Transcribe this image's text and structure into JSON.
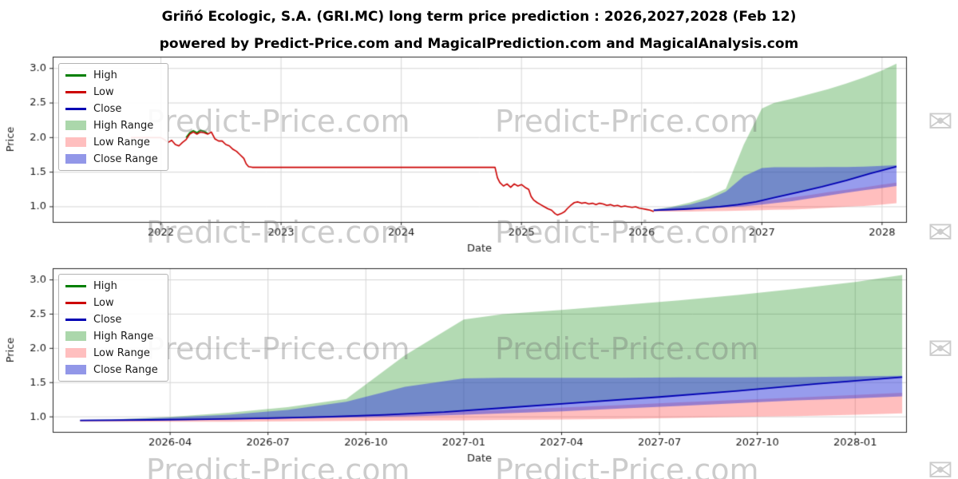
{
  "page": {
    "title": "Griñó Ecologic, S.A. (GRI.MC) long term price prediction : 2026,2027,2028 (Feb 12)",
    "subtitle": "powered by Predict-Price.com and MagicalPrediction.com and MagicalAnalysis.com",
    "watermark_text": "Predict-Price.com",
    "watermark_icon": "✉"
  },
  "colors": {
    "high_line": "#007f00",
    "low_line": "#cc0000",
    "close_line": "#0000b3",
    "high_range_fill": "rgba(20,140,20,0.32)",
    "low_range_fill": "rgba(255,40,40,0.30)",
    "close_range_fill": "rgba(55,65,220,0.52)",
    "grid": "#d6d6d6",
    "frame": "#262626",
    "tick_text": "#1a1a1a"
  },
  "legend": [
    {
      "label": "High",
      "type": "line",
      "swatch": "#007f00"
    },
    {
      "label": "Low",
      "type": "line",
      "swatch": "#cc0000"
    },
    {
      "label": "Close",
      "type": "line",
      "swatch": "#0000b3"
    },
    {
      "label": "High Range",
      "type": "patch",
      "swatch": "#abd7ab"
    },
    {
      "label": "Low Range",
      "type": "patch",
      "swatch": "#ffbfbf"
    },
    {
      "label": "Close Range",
      "type": "patch",
      "swatch": "#9297e8"
    }
  ],
  "chart_data": [
    {
      "type": "line",
      "name": "history-and-forecast",
      "xlabel": "Date",
      "ylabel": "Price",
      "xlim": [
        2021.1,
        2028.2
      ],
      "ylim": [
        0.78,
        3.17
      ],
      "grid": true,
      "legend_position": "upper left",
      "xticks": [
        {
          "v": 2022,
          "label": "2022"
        },
        {
          "v": 2023,
          "label": "2023"
        },
        {
          "v": 2024,
          "label": "2024"
        },
        {
          "v": 2025,
          "label": "2025"
        },
        {
          "v": 2026,
          "label": "2026"
        },
        {
          "v": 2027,
          "label": "2027"
        },
        {
          "v": 2028,
          "label": "2028"
        }
      ],
      "yticks": [
        {
          "v": 1.0,
          "label": "1.0"
        },
        {
          "v": 1.5,
          "label": "1.5"
        },
        {
          "v": 2.0,
          "label": "2.0"
        },
        {
          "v": 2.5,
          "label": "2.5"
        },
        {
          "v": 3.0,
          "label": "3.0"
        }
      ],
      "bands": [
        {
          "name": "high-range",
          "color": "rgba(20,140,20,0.32)",
          "x": [
            2026.1,
            2026.25,
            2026.4,
            2026.55,
            2026.7,
            2026.85,
            2027.0,
            2027.1,
            2027.25,
            2027.4,
            2027.55,
            2027.7,
            2027.85,
            2028.0,
            2028.12
          ],
          "upper": [
            0.96,
            1.0,
            1.06,
            1.14,
            1.26,
            1.9,
            2.42,
            2.5,
            2.56,
            2.63,
            2.7,
            2.78,
            2.87,
            2.97,
            3.07
          ],
          "lower": [
            0.95,
            0.96,
            0.97,
            0.98,
            1.0,
            1.04,
            1.09,
            1.13,
            1.19,
            1.25,
            1.32,
            1.38,
            1.46,
            1.53,
            1.58
          ]
        },
        {
          "name": "low-range",
          "color": "rgba(255,40,40,0.30)",
          "x": [
            2026.1,
            2026.25,
            2026.4,
            2026.55,
            2026.7,
            2026.85,
            2027.0,
            2027.1,
            2027.25,
            2027.4,
            2027.55,
            2027.7,
            2027.85,
            2028.0,
            2028.12
          ],
          "upper": [
            0.955,
            0.97,
            0.985,
            1.0,
            1.02,
            1.05,
            1.08,
            1.1,
            1.135,
            1.17,
            1.21,
            1.245,
            1.28,
            1.32,
            1.35
          ],
          "lower": [
            0.93,
            0.93,
            0.93,
            0.935,
            0.94,
            0.945,
            0.95,
            0.955,
            0.96,
            0.97,
            0.985,
            1.0,
            1.01,
            1.03,
            1.05
          ]
        },
        {
          "name": "close-range",
          "color": "rgba(55,65,220,0.52)",
          "x": [
            2026.1,
            2026.25,
            2026.4,
            2026.55,
            2026.7,
            2026.85,
            2027.0,
            2027.1,
            2027.25,
            2027.4,
            2027.55,
            2027.7,
            2027.85,
            2028.0,
            2028.12
          ],
          "upper": [
            0.96,
            0.99,
            1.03,
            1.1,
            1.22,
            1.44,
            1.56,
            1.57,
            1.57,
            1.57,
            1.575,
            1.575,
            1.58,
            1.59,
            1.6
          ],
          "lower": [
            0.94,
            0.95,
            0.96,
            0.975,
            0.99,
            1.005,
            1.03,
            1.05,
            1.08,
            1.12,
            1.16,
            1.2,
            1.24,
            1.27,
            1.3
          ]
        }
      ],
      "series": [
        {
          "name": "High",
          "color": "#007f00",
          "width": 1.6,
          "x": [
            2022.21,
            2022.24,
            2022.27,
            2022.3,
            2022.33,
            2022.36,
            2022.39
          ],
          "y": [
            2.0,
            2.07,
            2.1,
            2.07,
            2.105,
            2.09,
            2.06
          ]
        },
        {
          "name": "Low",
          "color": "#cc0000",
          "width": 1.6,
          "x": [
            2021.75,
            2022.0,
            2022.03,
            2022.06,
            2022.09,
            2022.12,
            2022.15,
            2022.18,
            2022.21,
            2022.24,
            2022.27,
            2022.3,
            2022.33,
            2022.36,
            2022.39,
            2022.42,
            2022.45,
            2022.48,
            2022.51,
            2022.54,
            2022.57,
            2022.6,
            2022.63,
            2022.66,
            2022.69,
            2022.71,
            2022.73,
            2022.76,
            2024.78,
            2024.8,
            2024.82,
            2024.85,
            2024.88,
            2024.91,
            2024.94,
            2024.97,
            2025.0,
            2025.03,
            2025.06,
            2025.08,
            2025.1,
            2025.13,
            2025.16,
            2025.19,
            2025.22,
            2025.25,
            2025.28,
            2025.3,
            2025.33,
            2025.36,
            2025.38,
            2025.41,
            2025.44,
            2025.47,
            2025.5,
            2025.53,
            2025.56,
            2025.59,
            2025.62,
            2025.65,
            2025.68,
            2025.71,
            2025.74,
            2025.77,
            2025.8,
            2025.83,
            2025.86,
            2025.89,
            2025.92,
            2025.95,
            2025.98,
            2026.01,
            2026.04,
            2026.07,
            2026.1
          ],
          "y": [
            2.0,
            2.0,
            1.97,
            1.93,
            1.96,
            1.9,
            1.88,
            1.93,
            1.97,
            2.05,
            2.08,
            2.05,
            2.08,
            2.07,
            2.05,
            2.08,
            1.98,
            1.95,
            1.95,
            1.9,
            1.88,
            1.83,
            1.8,
            1.75,
            1.7,
            1.62,
            1.58,
            1.57,
            1.57,
            1.42,
            1.35,
            1.3,
            1.33,
            1.28,
            1.33,
            1.3,
            1.32,
            1.28,
            1.25,
            1.15,
            1.1,
            1.06,
            1.03,
            1.0,
            0.97,
            0.95,
            0.9,
            0.88,
            0.9,
            0.93,
            0.97,
            1.02,
            1.06,
            1.07,
            1.05,
            1.06,
            1.04,
            1.05,
            1.03,
            1.05,
            1.04,
            1.02,
            1.03,
            1.01,
            1.02,
            1.0,
            1.01,
            1.0,
            0.99,
            1.0,
            0.98,
            0.97,
            0.96,
            0.95,
            0.93
          ]
        },
        {
          "name": "Close",
          "color": "#0000b3",
          "width": 1.8,
          "x": [
            2026.1,
            2026.2,
            2026.35,
            2026.5,
            2026.65,
            2026.8,
            2026.95,
            2027.1,
            2027.3,
            2027.5,
            2027.7,
            2027.9,
            2028.12
          ],
          "y": [
            0.95,
            0.955,
            0.965,
            0.98,
            1.0,
            1.03,
            1.07,
            1.13,
            1.21,
            1.29,
            1.38,
            1.48,
            1.58
          ]
        }
      ]
    },
    {
      "type": "line",
      "name": "forecast-zoom",
      "xlabel": "Date",
      "ylabel": "Price",
      "xlim": [
        2025.95,
        2028.13
      ],
      "ylim": [
        0.78,
        3.17
      ],
      "grid": true,
      "legend_position": "upper left",
      "xticks": [
        {
          "v": 2026.25,
          "label": "2026-04"
        },
        {
          "v": 2026.5,
          "label": "2026-07"
        },
        {
          "v": 2026.75,
          "label": "2026-10"
        },
        {
          "v": 2027.0,
          "label": "2027-01"
        },
        {
          "v": 2027.25,
          "label": "2027-04"
        },
        {
          "v": 2027.5,
          "label": "2027-07"
        },
        {
          "v": 2027.75,
          "label": "2027-10"
        },
        {
          "v": 2028.0,
          "label": "2028-01"
        }
      ],
      "yticks": [
        {
          "v": 1.0,
          "label": "1.0"
        },
        {
          "v": 1.5,
          "label": "1.5"
        },
        {
          "v": 2.0,
          "label": "2.0"
        },
        {
          "v": 2.5,
          "label": "2.5"
        },
        {
          "v": 3.0,
          "label": "3.0"
        }
      ],
      "bands": [
        {
          "name": "high-range",
          "color": "rgba(20,140,20,0.32)",
          "x": [
            2026.02,
            2026.1,
            2026.25,
            2026.4,
            2026.55,
            2026.7,
            2026.85,
            2027.0,
            2027.1,
            2027.25,
            2027.4,
            2027.55,
            2027.7,
            2027.85,
            2028.0,
            2028.12
          ],
          "upper": [
            0.955,
            0.96,
            1.0,
            1.06,
            1.14,
            1.26,
            1.9,
            2.42,
            2.5,
            2.56,
            2.63,
            2.7,
            2.78,
            2.87,
            2.97,
            3.07
          ],
          "lower": [
            0.945,
            0.95,
            0.96,
            0.97,
            0.98,
            1.0,
            1.04,
            1.09,
            1.13,
            1.19,
            1.25,
            1.32,
            1.38,
            1.46,
            1.53,
            1.58
          ]
        },
        {
          "name": "low-range",
          "color": "rgba(255,40,40,0.30)",
          "x": [
            2026.02,
            2026.1,
            2026.25,
            2026.4,
            2026.55,
            2026.7,
            2026.85,
            2027.0,
            2027.1,
            2027.25,
            2027.4,
            2027.55,
            2027.7,
            2027.85,
            2028.0,
            2028.12
          ],
          "upper": [
            0.95,
            0.955,
            0.97,
            0.985,
            1.0,
            1.02,
            1.05,
            1.08,
            1.1,
            1.135,
            1.17,
            1.21,
            1.245,
            1.28,
            1.32,
            1.35
          ],
          "lower": [
            0.93,
            0.93,
            0.93,
            0.93,
            0.935,
            0.94,
            0.945,
            0.95,
            0.955,
            0.96,
            0.97,
            0.985,
            1.0,
            1.01,
            1.03,
            1.05
          ]
        },
        {
          "name": "close-range",
          "color": "rgba(55,65,220,0.52)",
          "x": [
            2026.02,
            2026.1,
            2026.25,
            2026.4,
            2026.55,
            2026.7,
            2026.85,
            2027.0,
            2027.1,
            2027.25,
            2027.4,
            2027.55,
            2027.7,
            2027.85,
            2028.0,
            2028.12
          ],
          "upper": [
            0.955,
            0.96,
            0.99,
            1.03,
            1.1,
            1.22,
            1.44,
            1.56,
            1.57,
            1.57,
            1.57,
            1.575,
            1.575,
            1.58,
            1.59,
            1.6
          ],
          "lower": [
            0.94,
            0.94,
            0.95,
            0.96,
            0.975,
            0.99,
            1.005,
            1.03,
            1.05,
            1.08,
            1.12,
            1.16,
            1.2,
            1.24,
            1.27,
            1.3
          ]
        }
      ],
      "series": [
        {
          "name": "Close",
          "color": "#0000b3",
          "width": 1.8,
          "x": [
            2026.02,
            2026.1,
            2026.2,
            2026.35,
            2026.5,
            2026.65,
            2026.8,
            2026.95,
            2027.1,
            2027.3,
            2027.5,
            2027.7,
            2027.9,
            2028.12
          ],
          "y": [
            0.948,
            0.95,
            0.955,
            0.965,
            0.98,
            1.0,
            1.03,
            1.07,
            1.13,
            1.21,
            1.29,
            1.38,
            1.48,
            1.58
          ]
        }
      ]
    }
  ]
}
